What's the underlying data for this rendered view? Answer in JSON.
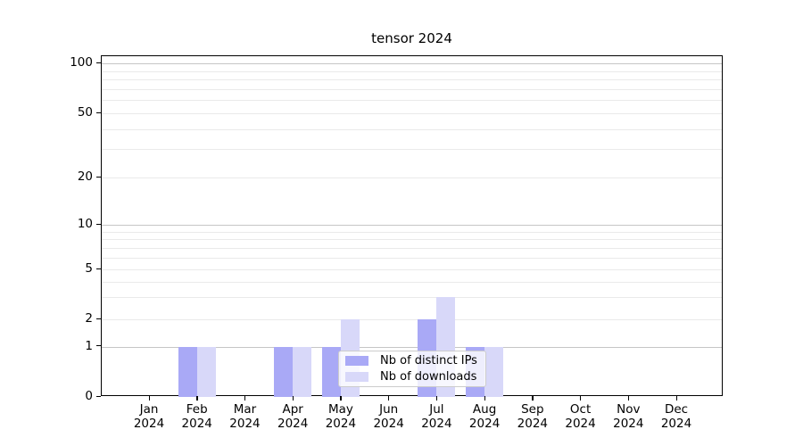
{
  "chart_data": {
    "type": "bar",
    "title": "tensor 2024",
    "categories": [
      "Jan",
      "Feb",
      "Mar",
      "Apr",
      "May",
      "Jun",
      "Jul",
      "Aug",
      "Sep",
      "Oct",
      "Nov",
      "Dec"
    ],
    "year": "2024",
    "series": [
      {
        "name": "Nb of distinct IPs",
        "color": "#a9a9f6",
        "values": [
          0,
          1,
          0,
          1,
          1,
          0,
          2,
          1,
          0,
          0,
          0,
          0
        ]
      },
      {
        "name": "Nb of downloads",
        "color": "#d8d8f9",
        "values": [
          0,
          1,
          0,
          1,
          2,
          0,
          3,
          1,
          0,
          0,
          0,
          0
        ]
      }
    ],
    "yticks": [
      0,
      1,
      2,
      5,
      10,
      20,
      50,
      100
    ],
    "grid_major": [
      1,
      10,
      100
    ],
    "grid_minor": [
      2,
      3,
      4,
      5,
      6,
      7,
      8,
      9,
      20,
      30,
      40,
      50,
      60,
      70,
      80,
      90
    ],
    "scale": "symlog",
    "ylim": [
      0,
      130
    ],
    "grid": true,
    "legend_position": "lower center"
  },
  "colors": {
    "bar_dark": "#a9a9f6",
    "bar_light": "#d8d8f9",
    "grid_major": "#c6c6c6",
    "grid_minor": "#eaeaea",
    "spine": "#000000",
    "legend_border": "#cccccc"
  }
}
